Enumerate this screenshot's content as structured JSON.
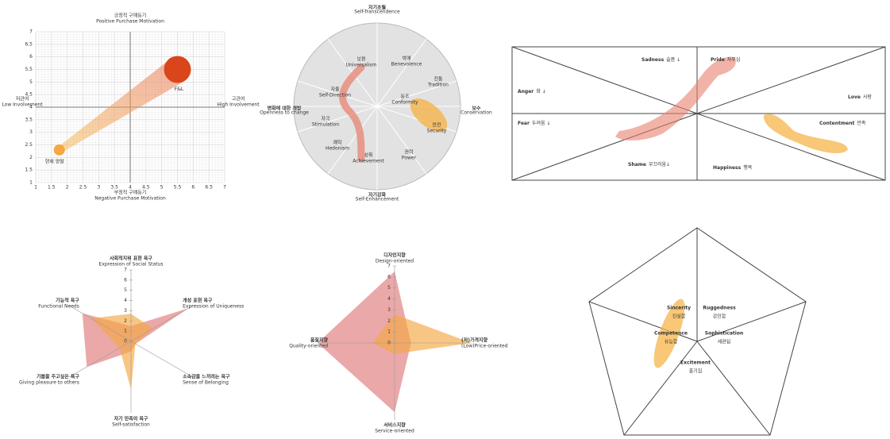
{
  "chart_data": [
    {
      "type": "scatter",
      "title": "긍정적 구매동기",
      "subtitle": "Positive Purchase Motivation",
      "x_label": "부정적 구매동기",
      "x_label_sub": "Negative Purchase Motivation",
      "left_label": "저관여",
      "left_label_sub": "Low Involvement",
      "right_label": "고관여",
      "right_label_sub": "High Involvement",
      "xlim": [
        1,
        7
      ],
      "ylim": [
        1,
        7
      ],
      "xticks": [
        1,
        1.5,
        2,
        2.5,
        3,
        3.5,
        4,
        4.5,
        5,
        5.5,
        6,
        6.5,
        7
      ],
      "yticks": [
        1,
        1.5,
        2,
        2.5,
        3,
        3.5,
        4,
        4.5,
        5,
        5.5,
        6,
        6.5,
        7
      ],
      "grid": true,
      "series": [
        {
          "name": "현재 양말",
          "color": "#f5a742",
          "x": [
            1.75
          ],
          "values": [
            2.3
          ]
        },
        {
          "name": "F&L",
          "color": "#d9461c",
          "x": [
            5.5
          ],
          "values": [
            5.5
          ]
        }
      ]
    },
    {
      "type": "radar",
      "axes": [
        {
          "label": "사회적지위 표현 욕구",
          "sub": "Expression of Social Status"
        },
        {
          "label": "개성 표현 욕구",
          "sub": "Expression of Uniqueness"
        },
        {
          "label": "소속감을 느끼려는 욕구",
          "sub": "Sense of Belonging"
        },
        {
          "label": "자기 만족의 욕구",
          "sub": "Self-satisfaction"
        },
        {
          "label": "기쁨을 주고싶은 욕구",
          "sub": "Giving pleasure to others"
        },
        {
          "label": "기능적 욕구",
          "sub": "Functional Needs"
        }
      ],
      "rlim": [
        0,
        7
      ],
      "rticks": [
        0,
        1,
        2,
        3,
        4,
        5,
        6,
        7
      ],
      "series": [
        {
          "color": "#e07a7a",
          "values": [
            1.5,
            6.5,
            0.5,
            1,
            5,
            5.5
          ]
        },
        {
          "color": "#f5a742",
          "values": [
            2.7,
            2.5,
            0.5,
            4.7,
            1.3,
            4.5
          ]
        }
      ]
    },
    {
      "type": "radar",
      "axes": [
        {
          "label": "디자인지향",
          "sub": "Design-oriented"
        },
        {
          "label": "(저)가격지향",
          "sub": "(Low)Price-oriented"
        },
        {
          "label": "서비스지향",
          "sub": "Service-oriented"
        },
        {
          "label": "품질지향",
          "sub": "Quality-oriented"
        }
      ],
      "rlim": [
        0,
        7
      ],
      "rticks": [
        0,
        1,
        2,
        3,
        4,
        5,
        6,
        7
      ],
      "series": [
        {
          "color": "#e07a7a",
          "values": [
            6.5,
            1.5,
            6.3,
            7
          ]
        },
        {
          "color": "#f5a742",
          "values": [
            2.6,
            7,
            1,
            2
          ]
        }
      ]
    }
  ],
  "values_circle": {
    "top": {
      "ko": "자기초월",
      "en": "Self-Transcendence"
    },
    "bottom": {
      "ko": "자기강화",
      "en": "Self-Enhancement"
    },
    "left": {
      "ko": "변화에 대한 개방",
      "en": "Openness to change"
    },
    "right": {
      "ko": "보수",
      "en": "Conservation"
    },
    "sectors": [
      {
        "ko": "보편",
        "en": "Universalism"
      },
      {
        "ko": "박애",
        "en": "Benevolence"
      },
      {
        "ko": "전통",
        "en": "Tradition"
      },
      {
        "ko": "동조",
        "en": "Conformity"
      },
      {
        "ko": "안전",
        "en": "Security"
      },
      {
        "ko": "권력",
        "en": "Power"
      },
      {
        "ko": "성취",
        "en": "Achievement"
      },
      {
        "ko": "쾌락",
        "en": "Hedonism"
      },
      {
        "ko": "자극",
        "en": "Stimulation"
      },
      {
        "ko": "자율",
        "en": "Self-Direction"
      }
    ]
  },
  "emotions": [
    {
      "en": "Sadness",
      "ko": "슬픔 ↓"
    },
    {
      "en": "Pride",
      "ko": "자부심"
    },
    {
      "en": "Anger",
      "ko": "화 ↓"
    },
    {
      "en": "Love",
      "ko": "사랑"
    },
    {
      "en": "Fear",
      "ko": "두려움 ↓"
    },
    {
      "en": "Contentment",
      "ko": "만족"
    },
    {
      "en": "Shame",
      "ko": "부끄러움↓"
    },
    {
      "en": "Happiness",
      "ko": "행복"
    }
  ],
  "personality": [
    {
      "en": "Sincerity",
      "ko": "진실함"
    },
    {
      "en": "Ruggedness",
      "ko": "강인함"
    },
    {
      "en": "Competence",
      "ko": "유능함"
    },
    {
      "en": "Sophistication",
      "ko": "세련됨"
    },
    {
      "en": "Excitement",
      "ko": "흥기짐"
    }
  ]
}
